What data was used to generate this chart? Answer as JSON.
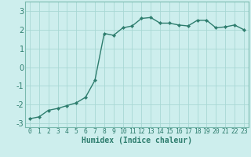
{
  "x": [
    0,
    1,
    2,
    3,
    4,
    5,
    6,
    7,
    8,
    9,
    10,
    11,
    12,
    13,
    14,
    15,
    16,
    17,
    18,
    19,
    20,
    21,
    22,
    23
  ],
  "y": [
    -2.75,
    -2.65,
    -2.3,
    -2.2,
    -2.05,
    -1.9,
    -1.6,
    -0.7,
    1.8,
    1.7,
    2.1,
    2.2,
    2.6,
    2.65,
    2.35,
    2.35,
    2.25,
    2.2,
    2.5,
    2.5,
    2.1,
    2.15,
    2.25,
    2.0
  ],
  "xlim": [
    -0.5,
    23.5
  ],
  "ylim": [
    -3.2,
    3.5
  ],
  "yticks": [
    -3,
    -2,
    -1,
    0,
    1,
    2,
    3
  ],
  "xtick_labels": [
    "0",
    "1",
    "2",
    "3",
    "4",
    "5",
    "6",
    "7",
    "8",
    "9",
    "10",
    "11",
    "12",
    "13",
    "14",
    "15",
    "16",
    "17",
    "18",
    "19",
    "20",
    "21",
    "22",
    "23"
  ],
  "xlabel": "Humidex (Indice chaleur)",
  "line_color": "#2e7d6e",
  "marker_color": "#2e7d6e",
  "bg_color": "#cdeeed",
  "grid_color": "#a8d8d4",
  "xlabel_color": "#2e7d6e",
  "tick_color": "#2e7d6e",
  "spine_color": "#7abaaf",
  "xlabel_fontsize": 7.0,
  "ytick_fontsize": 7.0,
  "xtick_fontsize": 5.8,
  "line_width": 1.0,
  "marker_size": 2.2
}
